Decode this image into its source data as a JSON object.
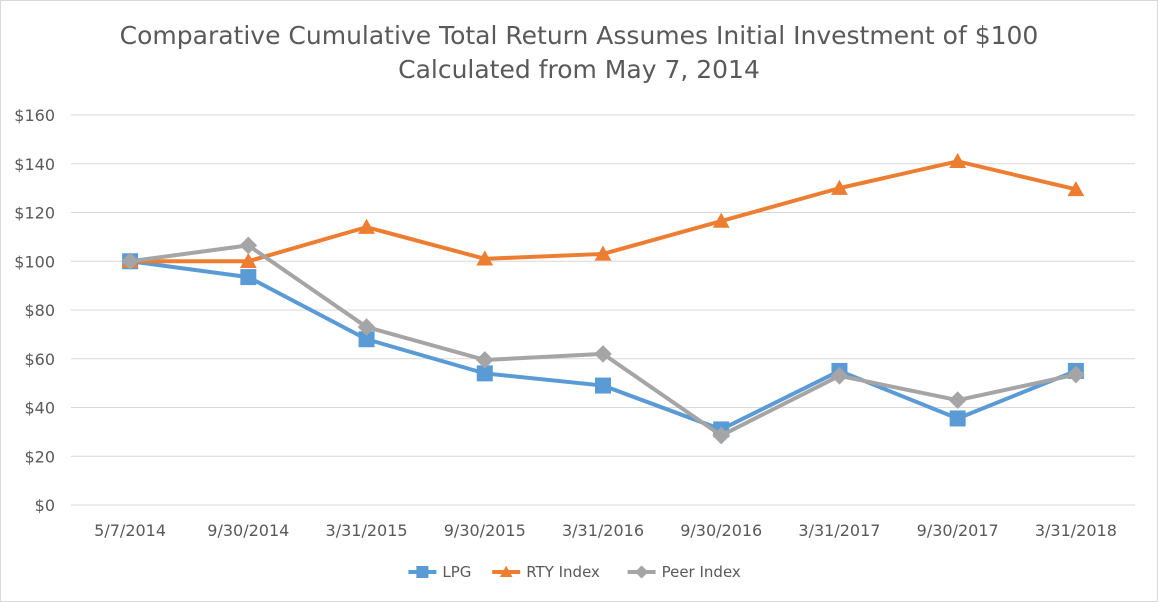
{
  "chart_data": {
    "type": "line",
    "title": "Comparative Cumulative Total Return Assumes Initial Investment of $100",
    "subtitle": "Calculated from May 7, 2014",
    "xlabel": "",
    "ylabel": "",
    "categories": [
      "5/7/2014",
      "9/30/2014",
      "3/31/2015",
      "9/30/2015",
      "3/31/2016",
      "9/30/2016",
      "3/31/2017",
      "9/30/2017",
      "3/31/2018"
    ],
    "ylim": [
      0,
      160
    ],
    "yticks": [
      0,
      20,
      40,
      60,
      80,
      100,
      120,
      140,
      160
    ],
    "ytick_labels": [
      "$0",
      "$20",
      "$40",
      "$60",
      "$80",
      "$100",
      "$120",
      "$140",
      "$160"
    ],
    "grid": true,
    "legend_position": "bottom",
    "series": [
      {
        "name": "LPG",
        "color": "#5B9BD5",
        "marker": "square",
        "values": [
          100,
          93.5,
          68,
          54,
          49,
          31,
          55,
          35.5,
          55
        ]
      },
      {
        "name": "RTY Index",
        "color": "#ED7D31",
        "marker": "triangle",
        "values": [
          100,
          100,
          114,
          101,
          103,
          116.5,
          130,
          141,
          129.5
        ]
      },
      {
        "name": "Peer Index",
        "color": "#A5A5A5",
        "marker": "diamond",
        "values": [
          100,
          106.5,
          73,
          59.5,
          62,
          28.5,
          53,
          43,
          53.5
        ]
      }
    ]
  }
}
